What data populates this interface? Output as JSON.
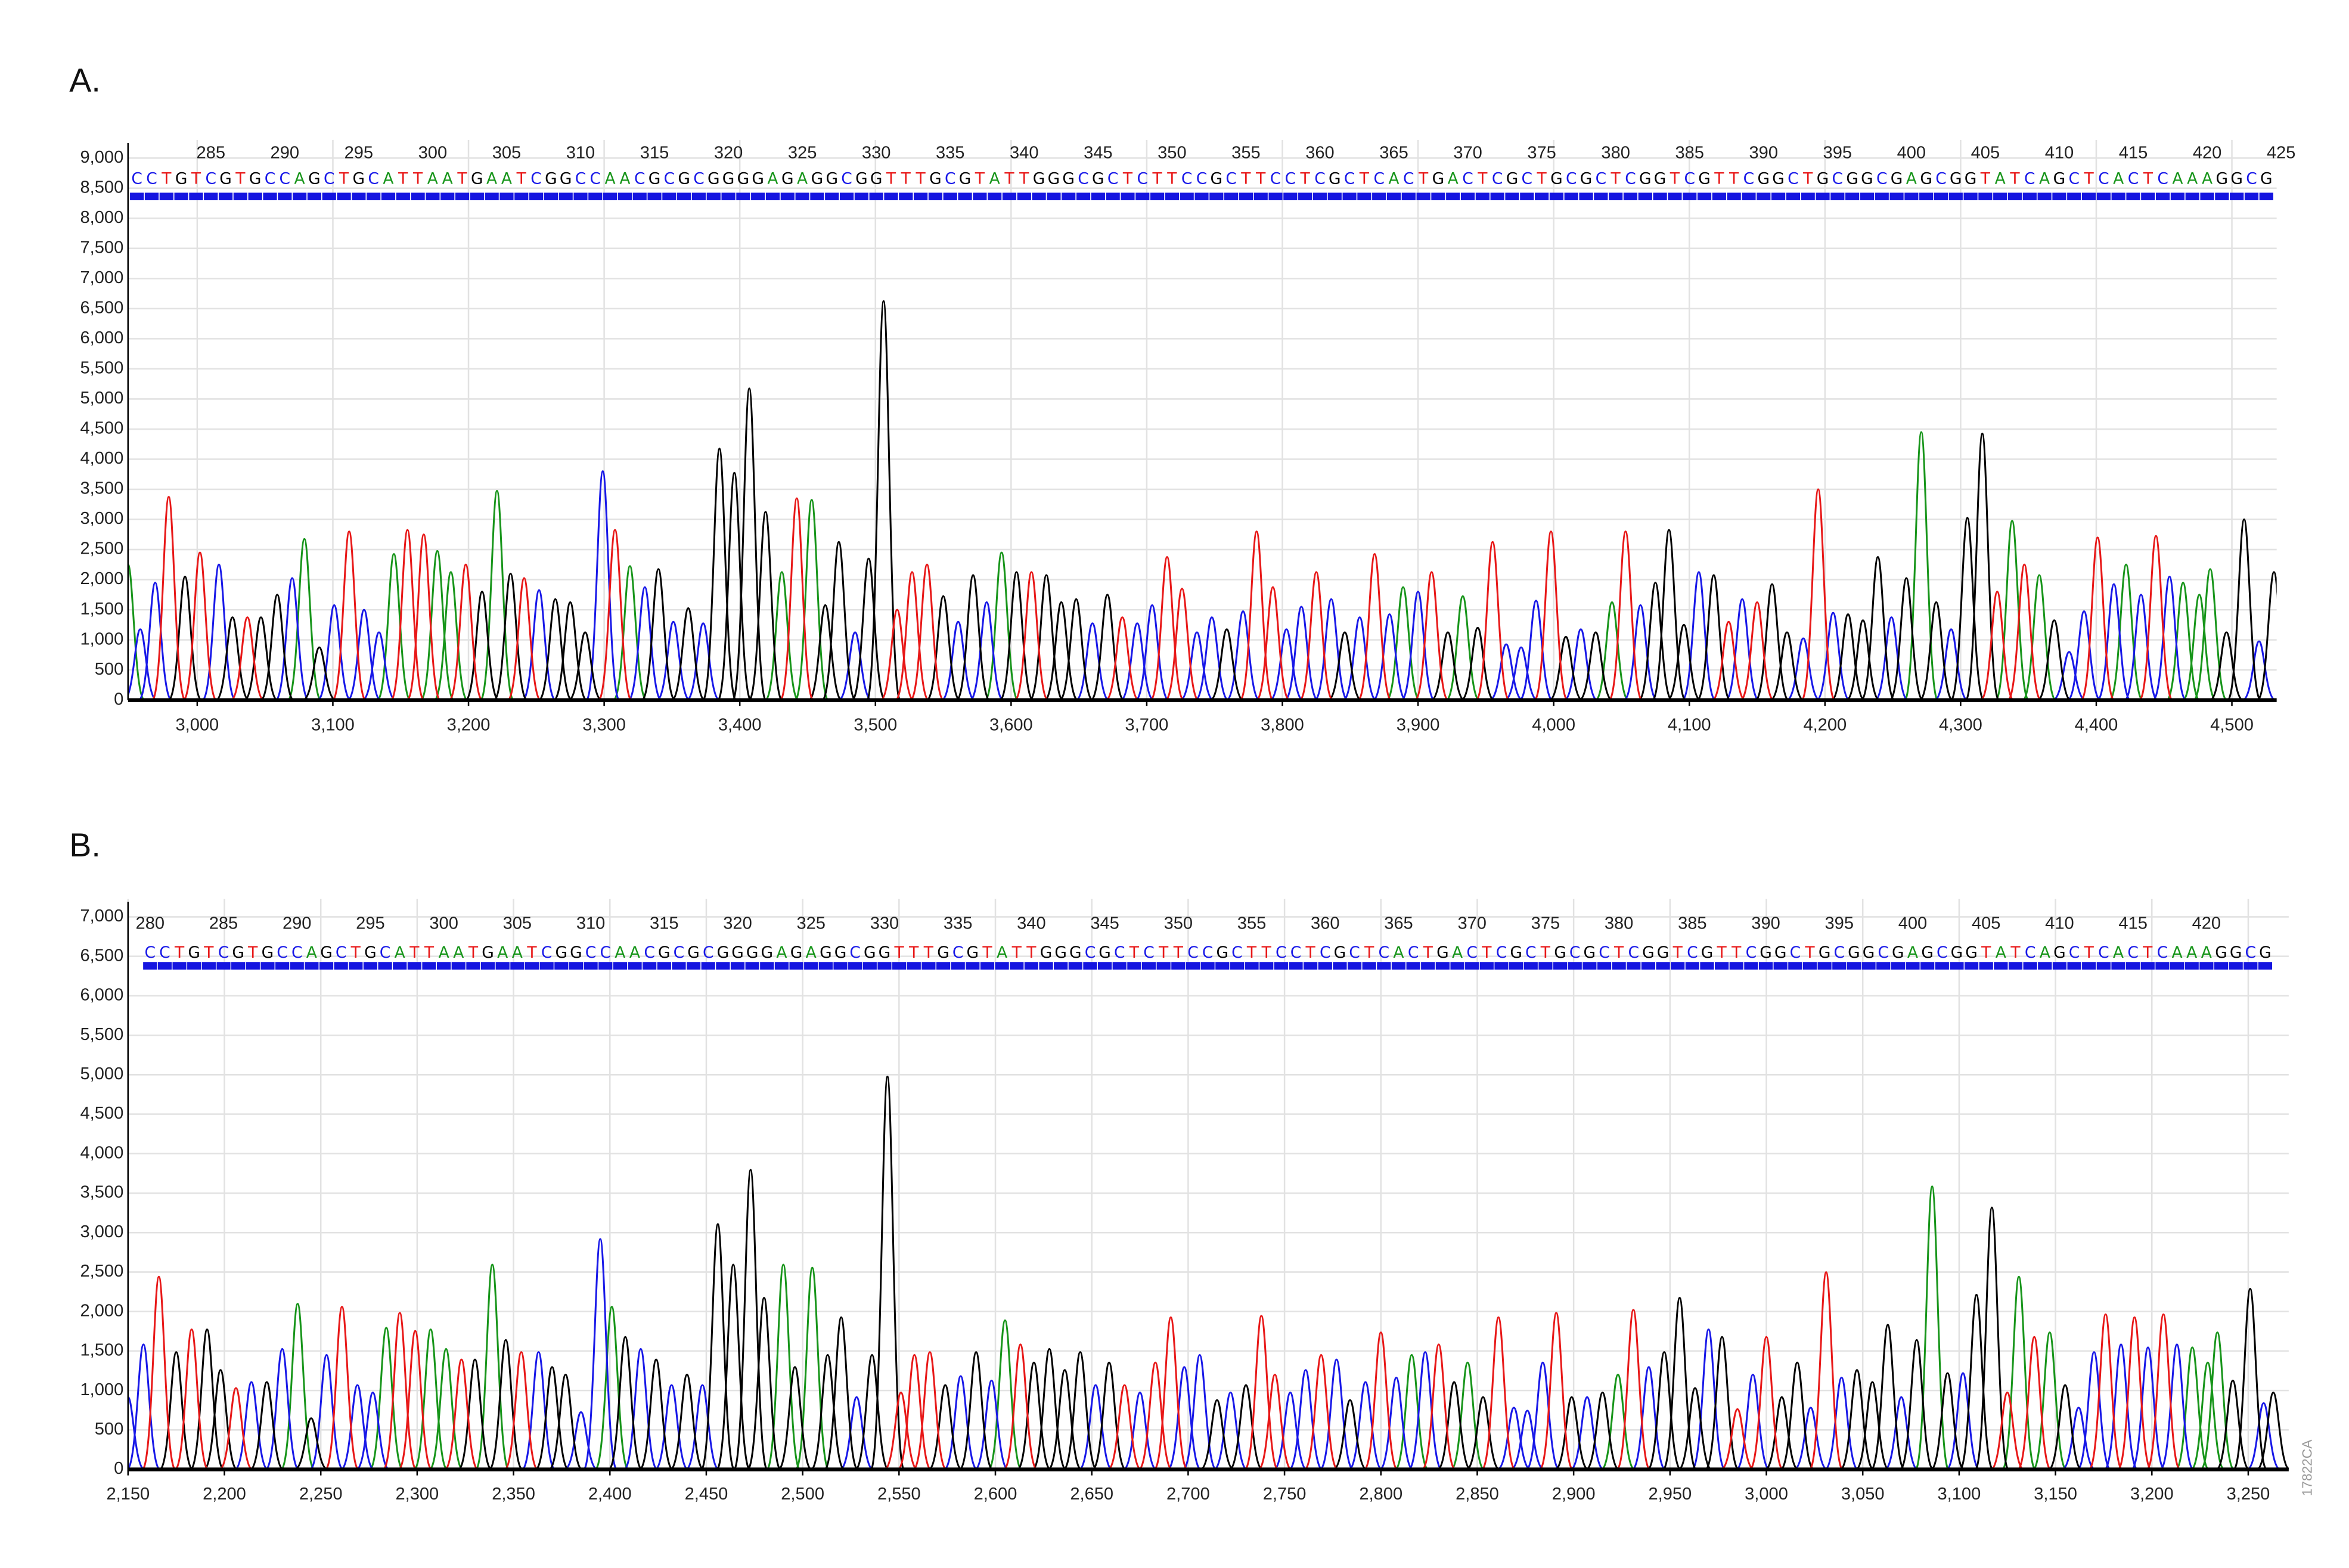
{
  "figure_id": "17822CA",
  "chart_data": [
    {
      "type": "chromatogram",
      "title": "A.",
      "sequence": "CCTGTCGTGCCAGCTGCATTAATGAATCGGCCAACGCGCGGGGAGAGGCGGTTTGCGTATTGGGCGCTCTTCCGCTTCCTCGCTCACTGACTCGCTGCGCTCGGTCGTTCGGCTGCGGCGAGCGGTATCAGCTCACTCAAAGGCG",
      "sequence_start": 280,
      "base_colors": {
        "A": "#17951a",
        "C": "#1818e8",
        "G": "#000000",
        "T": "#e81818"
      },
      "xlim": [
        2949,
        4533
      ],
      "ylim": [
        0,
        9000
      ],
      "x2lim": [
        279.4,
        424.7
      ],
      "grid": true,
      "xticks": [
        {
          "value": 3000,
          "label": "3,000"
        },
        {
          "value": 3100,
          "label": "3,100"
        },
        {
          "value": 3200,
          "label": "3,200"
        },
        {
          "value": 3300,
          "label": "3,300"
        },
        {
          "value": 3400,
          "label": "3,400"
        },
        {
          "value": 3500,
          "label": "3,500"
        },
        {
          "value": 3600,
          "label": "3,600"
        },
        {
          "value": 3700,
          "label": "3,700"
        },
        {
          "value": 3800,
          "label": "3,800"
        },
        {
          "value": 3900,
          "label": "3,900"
        },
        {
          "value": 4000,
          "label": "4,000"
        },
        {
          "value": 4100,
          "label": "4,100"
        },
        {
          "value": 4200,
          "label": "4,200"
        },
        {
          "value": 4300,
          "label": "4,300"
        },
        {
          "value": 4400,
          "label": "4,400"
        },
        {
          "value": 4500,
          "label": "4,500"
        }
      ],
      "yticks": [
        0,
        500,
        {
          "value": 1000,
          "label": "1,000"
        },
        {
          "value": 1500,
          "label": "1,500"
        },
        {
          "value": 2000,
          "label": "2,000"
        },
        {
          "value": 2500,
          "label": "2,500"
        },
        {
          "value": 3000,
          "label": "3,000"
        },
        {
          "value": 3500,
          "label": "3,500"
        },
        {
          "value": 4000,
          "label": "4,000"
        },
        {
          "value": 4500,
          "label": "4,500"
        },
        {
          "value": 5000,
          "label": "5,000"
        },
        {
          "value": 5500,
          "label": "5,500"
        },
        {
          "value": 6000,
          "label": "6,000"
        },
        {
          "value": 6500,
          "label": "6,500"
        },
        {
          "value": 7000,
          "label": "7,000"
        },
        {
          "value": 7500,
          "label": "7,500"
        },
        {
          "value": 8000,
          "label": "8,000"
        },
        {
          "value": 8500,
          "label": "8,500"
        },
        {
          "value": 9000,
          "label": "9,000"
        }
      ],
      "x2ticks": [
        285,
        290,
        295,
        300,
        305,
        310,
        315,
        320,
        325,
        330,
        335,
        340,
        345,
        350,
        355,
        360,
        365,
        370,
        375,
        380,
        385,
        390,
        395,
        400,
        405,
        410,
        415,
        420,
        425
      ],
      "series": [
        {
          "color": "#17951a",
          "x": [
            2949,
            3079,
            3145,
            3177,
            3187,
            3221,
            3319,
            3431,
            3453,
            3593,
            3889,
            3933,
            4043,
            4271,
            4338,
            4358,
            4422,
            4464,
            4476,
            4484
          ],
          "values": [
            2250,
            2675,
            2425,
            2475,
            2125,
            3475,
            2225,
            2125,
            3325,
            2450,
            1875,
            1725,
            1625,
            4450,
            2975,
            2075,
            2250,
            1950,
            1750,
            2175
          ]
        },
        {
          "color": "#1818e8",
          "x": [
            2958,
            2969,
            3016,
            3070,
            3101,
            3123,
            3134,
            3252,
            3299,
            3330,
            3351,
            3373,
            3485,
            3561,
            3582,
            3660,
            3693,
            3704,
            3737,
            3748,
            3771,
            3803,
            3814,
            3836,
            3857,
            3879,
            3900,
            3965,
            3976,
            3987,
            4020,
            4064,
            4107,
            4139,
            4184,
            4206,
            4249,
            4293,
            4380,
            4391,
            4413,
            4433,
            4454,
            4520
          ],
          "values": [
            1175,
            1950,
            2250,
            2025,
            1575,
            1500,
            1125,
            1825,
            3800,
            1875,
            1300,
            1275,
            1125,
            1300,
            1625,
            1275,
            1275,
            1575,
            1125,
            1375,
            1475,
            1175,
            1550,
            1675,
            1375,
            1425,
            1800,
            925,
            875,
            1650,
            1175,
            1575,
            2125,
            1675,
            1025,
            1450,
            1375,
            1175,
            800,
            1475,
            1925,
            1750,
            2050,
            975
          ]
        },
        {
          "color": "#000000",
          "x": [
            2991,
            3026,
            3047,
            3059,
            3090,
            3210,
            3231,
            3264,
            3275,
            3286,
            3340,
            3362,
            3385,
            3396,
            3407,
            3419,
            3463,
            3473,
            3495,
            3506,
            3550,
            3572,
            3604,
            3626,
            3637,
            3648,
            3671,
            3759,
            3846,
            3922,
            3944,
            4009,
            4031,
            4075,
            4085,
            4096,
            4118,
            4161,
            4172,
            4217,
            4228,
            4239,
            4260,
            4282,
            4305,
            4316,
            4369,
            4496,
            4509,
            4531
          ],
          "values": [
            2050,
            1375,
            1375,
            1750,
            875,
            1800,
            2100,
            1675,
            1625,
            1125,
            2175,
            1525,
            4175,
            3775,
            5175,
            3125,
            1575,
            2625,
            2350,
            6625,
            1725,
            2075,
            2125,
            2075,
            1625,
            1675,
            1750,
            1175,
            1125,
            1125,
            1200,
            1050,
            1125,
            1950,
            2825,
            1250,
            2075,
            1925,
            1125,
            1425,
            1325,
            2375,
            2025,
            1625,
            3025,
            4425,
            1325,
            1125,
            3000,
            2125
          ]
        },
        {
          "color": "#e81818",
          "x": [
            2979,
            3002,
            3037,
            3112,
            3155,
            3167,
            3198,
            3241,
            3308,
            3442,
            3516,
            3527,
            3538,
            3615,
            3682,
            3715,
            3726,
            3781,
            3793,
            3825,
            3868,
            3910,
            3955,
            3998,
            4053,
            4129,
            4150,
            4195,
            4327,
            4347,
            4401,
            4444
          ],
          "values": [
            3375,
            2450,
            1375,
            2800,
            2825,
            2750,
            2250,
            2025,
            2825,
            3350,
            1500,
            2125,
            2250,
            2125,
            1375,
            2375,
            1850,
            2800,
            1875,
            2125,
            2425,
            2125,
            2625,
            2800,
            2800,
            1300,
            1625,
            3500,
            1800,
            2250,
            2700,
            2725
          ]
        }
      ]
    },
    {
      "type": "chromatogram",
      "title": "B.",
      "sequence": "CCTGTCGTGCCAGCTGCATTAATGAATCGGCCAACGCGCGGGGAGAGGCGGTTTGCGTATTGGGCGCTCTTCCGCTTCCTCGCTCACTGACTCGCTGCGCTCGGTCGTTCGGCTGCGGCGAGCGGTATCAGCTCACTCAAAGGCG",
      "sequence_start": 280,
      "base_colors": {
        "A": "#17951a",
        "C": "#1818e8",
        "G": "#000000",
        "T": "#e81818"
      },
      "xlim": [
        2150,
        3271
      ],
      "ylim": [
        0,
        7000
      ],
      "x2lim": [
        278.5,
        425.6
      ],
      "grid": true,
      "xticks": [
        {
          "value": 2150,
          "label": "2,150"
        },
        {
          "value": 2200,
          "label": "2,200"
        },
        {
          "value": 2250,
          "label": "2,250"
        },
        {
          "value": 2300,
          "label": "2,300"
        },
        {
          "value": 2350,
          "label": "2,350"
        },
        {
          "value": 2400,
          "label": "2,400"
        },
        {
          "value": 2450,
          "label": "2,450"
        },
        {
          "value": 2500,
          "label": "2,500"
        },
        {
          "value": 2550,
          "label": "2,550"
        },
        {
          "value": 2600,
          "label": "2,600"
        },
        {
          "value": 2650,
          "label": "2,650"
        },
        {
          "value": 2700,
          "label": "2,700"
        },
        {
          "value": 2750,
          "label": "2,750"
        },
        {
          "value": 2800,
          "label": "2,800"
        },
        {
          "value": 2850,
          "label": "2,850"
        },
        {
          "value": 2900,
          "label": "2,900"
        },
        {
          "value": 2950,
          "label": "2,950"
        },
        {
          "value": 3000,
          "label": "3,000"
        },
        {
          "value": 3050,
          "label": "3,050"
        },
        {
          "value": 3100,
          "label": "3,100"
        },
        {
          "value": 3150,
          "label": "3,150"
        },
        {
          "value": 3200,
          "label": "3,200"
        },
        {
          "value": 3250,
          "label": "3,250"
        }
      ],
      "yticks": [
        0,
        500,
        {
          "value": 1000,
          "label": "1,000"
        },
        {
          "value": 1500,
          "label": "1,500"
        },
        {
          "value": 2000,
          "label": "2,000"
        },
        {
          "value": 2500,
          "label": "2,500"
        },
        {
          "value": 3000,
          "label": "3,000"
        },
        {
          "value": 3500,
          "label": "3,500"
        },
        {
          "value": 4000,
          "label": "4,000"
        },
        {
          "value": 4500,
          "label": "4,500"
        },
        {
          "value": 5000,
          "label": "5,000"
        },
        {
          "value": 5500,
          "label": "5,500"
        },
        {
          "value": 6000,
          "label": "6,000"
        },
        {
          "value": 6500,
          "label": "6,500"
        },
        {
          "value": 7000,
          "label": "7,000"
        }
      ],
      "x2ticks": [
        280,
        285,
        290,
        295,
        300,
        305,
        310,
        315,
        320,
        325,
        330,
        335,
        340,
        345,
        350,
        355,
        360,
        365,
        370,
        375,
        380,
        385,
        390,
        395,
        400,
        405,
        410,
        415,
        420
      ],
      "series": [
        {
          "color": "#17951a",
          "x": [
            2238,
            2284,
            2307,
            2315,
            2339,
            2401,
            2490,
            2505,
            2605,
            2816,
            2845,
            2923,
            3086,
            3131,
            3147,
            3221,
            3229,
            3234
          ],
          "values": [
            2098,
            1793,
            1773,
            1526,
            2594,
            2060,
            2594,
            2555,
            1888,
            1450,
            1354,
            1201,
            3585,
            2441,
            1735,
            1545,
            1354,
            1735
          ]
        },
        {
          "color": "#1818e8",
          "x": [
            2150,
            2158,
            2214,
            2230,
            2253,
            2269,
            2277,
            2363,
            2385,
            2395,
            2416,
            2432,
            2448,
            2528,
            2582,
            2598,
            2652,
            2675,
            2698,
            2706,
            2722,
            2753,
            2761,
            2777,
            2792,
            2808,
            2823,
            2869,
            2876,
            2884,
            2907,
            2939,
            2970,
            2993,
            3023,
            3039,
            3070,
            3102,
            3162,
            3170,
            3184,
            3198,
            3213,
            3258
          ],
          "values": [
            915,
            1583,
            1106,
            1526,
            1450,
            1068,
            973,
            1487,
            725,
            2918,
            1526,
            1068,
            1068,
            915,
            1182,
            1125,
            1068,
            973,
            1297,
            1450,
            973,
            973,
            1259,
            1392,
            1106,
            1163,
            1487,
            782,
            744,
            1354,
            915,
            1297,
            1773,
            1201,
            782,
            1163,
            915,
            1220,
            782,
            1487,
            1583,
            1545,
            1583,
            839
          ]
        },
        {
          "color": "#000000",
          "x": [
            2175,
            2191,
            2198,
            2222,
            2245,
            2330,
            2346,
            2370,
            2377,
            2408,
            2424,
            2440,
            2456,
            2464,
            2473,
            2480,
            2496,
            2513,
            2520,
            2536,
            2544,
            2574,
            2590,
            2620,
            2628,
            2636,
            2644,
            2659,
            2715,
            2730,
            2784,
            2838,
            2853,
            2899,
            2915,
            2947,
            2955,
            2963,
            2977,
            3008,
            3016,
            3047,
            3055,
            3063,
            3078,
            3094,
            3109,
            3117,
            3155,
            3242,
            3251,
            3263
          ],
          "values": [
            1487,
            1773,
            1259,
            1106,
            648,
            1392,
            1640,
            1297,
            1201,
            1678,
            1392,
            1201,
            3108,
            2594,
            3795,
            2174,
            1297,
            1450,
            1926,
            1450,
            4977,
            1068,
            1487,
            1354,
            1526,
            1259,
            1487,
            1354,
            877,
            1068,
            877,
            1106,
            915,
            915,
            973,
            1487,
            2174,
            1030,
            1678,
            915,
            1354,
            1259,
            1106,
            1831,
            1640,
            1220,
            2212,
            3318,
            1068,
            1125,
            2288,
            973
          ]
        },
        {
          "color": "#e81818",
          "x": [
            2166,
            2183,
            2206,
            2261,
            2291,
            2299,
            2323,
            2354,
            2551,
            2558,
            2566,
            2613,
            2667,
            2683,
            2691,
            2738,
            2745,
            2769,
            2800,
            2830,
            2861,
            2891,
            2931,
            2985,
            3000,
            3031,
            3125,
            3139,
            3176,
            3191,
            3206
          ],
          "values": [
            2441,
            1773,
            1030,
            2060,
            1983,
            1754,
            1392,
            1487,
            973,
            1450,
            1487,
            1583,
            1068,
            1354,
            1926,
            1945,
            1201,
            1450,
            1735,
            1583,
            1926,
            1983,
            2022,
            763,
            1678,
            2498,
            973,
            1678,
            1964,
            1926,
            1964
          ]
        }
      ]
    }
  ]
}
